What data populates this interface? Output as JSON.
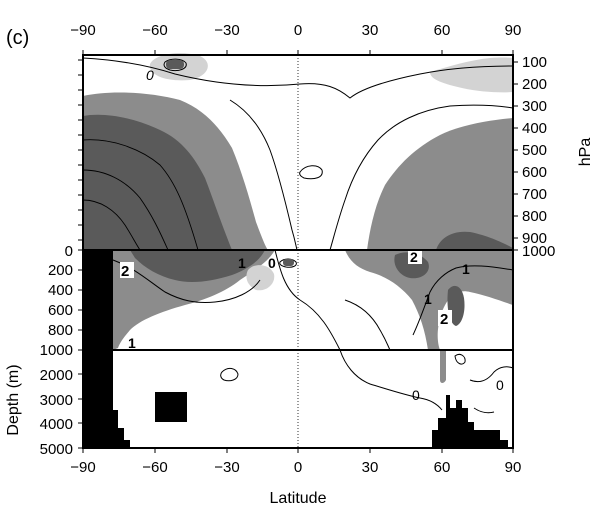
{
  "panel_label": "(c)",
  "top_lat_ticks": [
    "−90",
    "−60",
    "−30",
    "0",
    "30",
    "60",
    "90"
  ],
  "bottom_lat_ticks": [
    "−90",
    "−60",
    "−30",
    "0",
    "30",
    "60",
    "90"
  ],
  "xlabel": "Latitude",
  "atm_unit": "hPa",
  "atm_ticks": [
    "100",
    "200",
    "300",
    "400",
    "500",
    "600",
    "700",
    "800",
    "900",
    "1000"
  ],
  "ocean_depth_label": "Depth (m)",
  "ocean_upper_ticks": [
    "0",
    "200",
    "400",
    "600",
    "800",
    "1000"
  ],
  "ocean_lower_ticks": [
    "2000",
    "3000",
    "4000",
    "5000"
  ],
  "contour_labels": {
    "atm_zero": "0",
    "ocean_two_left": "2",
    "ocean_one_mid": "1",
    "ocean_zero_mid": "0",
    "ocean_one_left": "1",
    "ocean_two_right_top": "2",
    "ocean_one_right": "1",
    "ocean_two_right": "2",
    "ocean_one_small": "1",
    "deep_zero_mid": "0",
    "deep_zero_right": "0"
  },
  "colors": {
    "light": "#d3d3d3",
    "medium": "#8c8c8c",
    "dark": "#5a5a5a",
    "land": "#000000"
  }
}
